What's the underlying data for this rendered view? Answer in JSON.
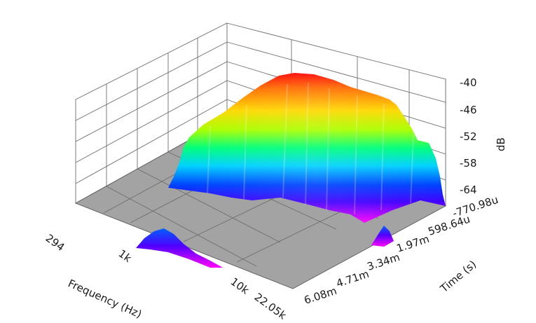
{
  "chart_data": {
    "type": "surface3d",
    "title": "",
    "xlabel": "Frequency (Hz)",
    "ylabel": "Time (s)",
    "zlabel": "dB",
    "x_ticks": [
      "294",
      "1k",
      "10k",
      "22.05k"
    ],
    "y_ticks": [
      "-770.98u",
      "598.64u",
      "1.97m",
      "3.34m",
      "4.71m",
      "6.08m"
    ],
    "z_ticks": [
      "-40",
      "-46",
      "-52",
      "-58",
      "-64"
    ],
    "zlim": [
      -68,
      -38
    ],
    "x_scale": "log",
    "colormap": [
      "#ff00ff",
      "#0000ff",
      "#00c8ff",
      "#00ff80",
      "#ffff00",
      "#ff8000",
      "#ff0000"
    ],
    "floor_color": "#a0a0a0",
    "grid": true
  }
}
